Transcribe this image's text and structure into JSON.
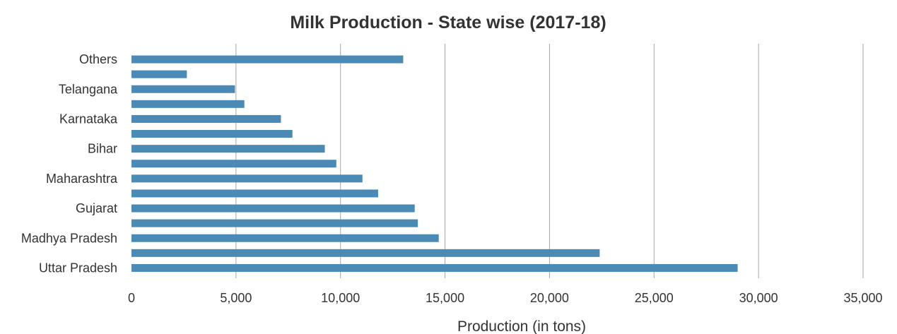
{
  "chart_data": {
    "type": "bar",
    "orientation": "horizontal",
    "title": "Milk Production - State wise (2017-18)",
    "xlabel": "Production (in tons)",
    "ylabel": "",
    "xlim": [
      0,
      35000
    ],
    "x_ticks": [
      "0",
      "5,000",
      "10,000",
      "15,000",
      "20,000",
      "25,000",
      "30,000",
      "35,000"
    ],
    "x_tick_values": [
      0,
      5000,
      10000,
      15000,
      20000,
      25000,
      30000,
      35000
    ],
    "grid": true,
    "legend": "none",
    "bar_color": "#4a8ab5",
    "grid_color": "#a6a6a6",
    "categories_bottom_to_top": [
      {
        "label": "Uttar Pradesh",
        "value": 29000
      },
      {
        "label": "",
        "value": 22400
      },
      {
        "label": "Madhya Pradesh",
        "value": 14700
      },
      {
        "label": "",
        "value": 13700
      },
      {
        "label": "Gujarat",
        "value": 13550
      },
      {
        "label": "",
        "value": 11800
      },
      {
        "label": "Maharashtra",
        "value": 11050
      },
      {
        "label": "",
        "value": 9800
      },
      {
        "label": "Bihar",
        "value": 9250
      },
      {
        "label": "",
        "value": 7700
      },
      {
        "label": "Karnataka",
        "value": 7150
      },
      {
        "label": "",
        "value": 5400
      },
      {
        "label": "Telangana",
        "value": 4950
      },
      {
        "label": "",
        "value": 2650
      },
      {
        "label": "Others",
        "value": 13000
      }
    ]
  }
}
